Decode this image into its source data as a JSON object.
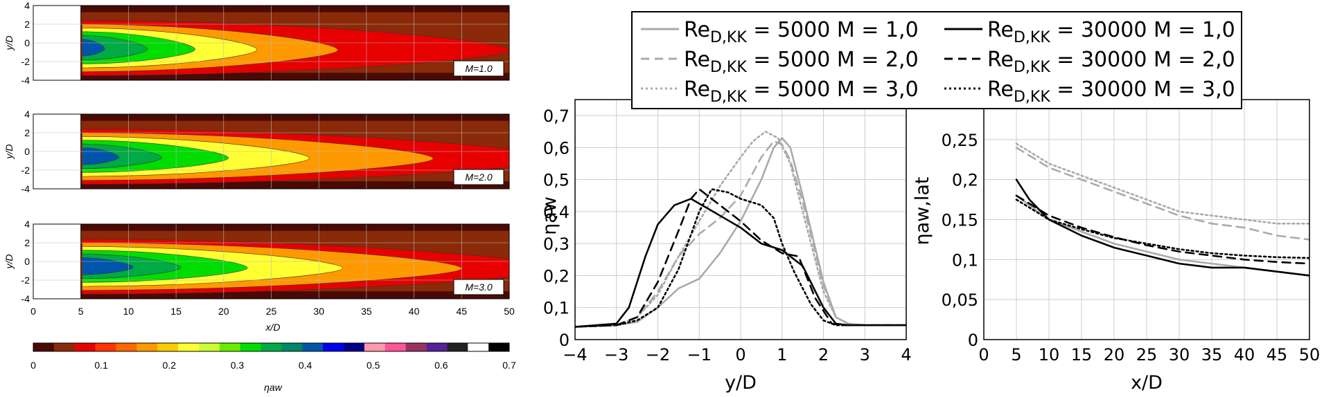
{
  "contour": {
    "x_label": "x/D",
    "y_label": "y/D",
    "x_ticks": [
      "0",
      "5",
      "10",
      "15",
      "20",
      "25",
      "30",
      "35",
      "40",
      "45",
      "50"
    ],
    "y_ticks": [
      "4",
      "2",
      "0",
      "-2",
      "-4"
    ],
    "panels": [
      {
        "tag": "M=1.0",
        "reach": [
          2.5,
          7,
          12,
          18.5,
          27,
          45
        ]
      },
      {
        "tag": "M=2.0",
        "reach": [
          4,
          8.5,
          15.5,
          24,
          37,
          50
        ]
      },
      {
        "tag": "M=3.0",
        "reach": [
          5.5,
          10.5,
          17.5,
          27.5,
          40,
          50
        ]
      }
    ],
    "colorbar": {
      "label": "ηaw",
      "ticks": [
        "0",
        "0.1",
        "0.2",
        "0.3",
        "0.4",
        "0.5",
        "0.6",
        "0.7"
      ],
      "colors": [
        "#4a0a04",
        "#8a2a08",
        "#e60000",
        "#ff3300",
        "#ff6600",
        "#ff9900",
        "#ffcc00",
        "#ffff33",
        "#ccff33",
        "#66ee00",
        "#00dd00",
        "#00aa44",
        "#008866",
        "#0055aa",
        "#0000ee",
        "#000088",
        "#ff99aa",
        "#ff5599",
        "#993366",
        "#552299",
        "#222222",
        "#ffffff",
        "#000000"
      ]
    }
  },
  "legend": [
    {
      "prefix": "Re",
      "sub": "D,KK",
      "text": " = 5000 M = 1,0",
      "color": "#aaaaaa",
      "dash": "solid"
    },
    {
      "prefix": "Re",
      "sub": "D,KK",
      "text": " = 30000 M = 1,0",
      "color": "#000000",
      "dash": "solid"
    },
    {
      "prefix": "Re",
      "sub": "D,KK",
      "text": " = 5000 M = 2,0",
      "color": "#aaaaaa",
      "dash": "dashed"
    },
    {
      "prefix": "Re",
      "sub": "D,KK",
      "text": " = 30000 M = 2,0",
      "color": "#000000",
      "dash": "dashed"
    },
    {
      "prefix": "Re",
      "sub": "D,KK",
      "text": " = 5000 M = 3,0",
      "color": "#aaaaaa",
      "dash": "dotted"
    },
    {
      "prefix": "Re",
      "sub": "D,KK",
      "text": " = 30000 M = 3,0",
      "color": "#000000",
      "dash": "dotted"
    }
  ],
  "chart_data": [
    {
      "type": "line",
      "xlabel": "y/D",
      "ylabel": "ηaw",
      "xlim": [
        -4,
        4
      ],
      "ylim": [
        0,
        0.75
      ],
      "x_ticks": [
        "−4",
        "−3",
        "−2",
        "−1",
        "0",
        "1",
        "2",
        "3",
        "4"
      ],
      "y_ticks": [
        "0",
        "0,1",
        "0,2",
        "0,3",
        "0,4",
        "0,5",
        "0,6",
        "0,7"
      ],
      "grid": true,
      "series": [
        {
          "name": "ReD,KK = 5000 M = 1,0",
          "color": "#aaaaaa",
          "dash": "solid",
          "x": [
            -4,
            -3,
            -2.5,
            -2,
            -1.5,
            -1,
            -0.5,
            0,
            0.5,
            0.8,
            1,
            1.2,
            1.5,
            2,
            2.3,
            2.6,
            3,
            4
          ],
          "y": [
            0.04,
            0.045,
            0.055,
            0.1,
            0.16,
            0.19,
            0.27,
            0.37,
            0.5,
            0.6,
            0.63,
            0.6,
            0.45,
            0.18,
            0.07,
            0.05,
            0.045,
            0.045
          ]
        },
        {
          "name": "ReD,KK = 5000 M = 2,0",
          "color": "#aaaaaa",
          "dash": "dashed",
          "x": [
            -4,
            -3,
            -2.5,
            -2,
            -1.5,
            -1,
            -0.5,
            0,
            0.5,
            0.8,
            1,
            1.2,
            1.5,
            2,
            2.3,
            2.6,
            3,
            4
          ],
          "y": [
            0.04,
            0.045,
            0.07,
            0.15,
            0.26,
            0.33,
            0.38,
            0.45,
            0.57,
            0.62,
            0.61,
            0.56,
            0.43,
            0.17,
            0.07,
            0.05,
            0.045,
            0.045
          ]
        },
        {
          "name": "ReD,KK = 5000 M = 3,0",
          "color": "#aaaaaa",
          "dash": "dotted",
          "x": [
            -4,
            -3,
            -2.5,
            -2,
            -1.5,
            -1,
            -0.5,
            0,
            0.3,
            0.6,
            0.9,
            1.2,
            1.5,
            2,
            2.3,
            2.6,
            3,
            4
          ],
          "y": [
            0.04,
            0.045,
            0.07,
            0.14,
            0.26,
            0.37,
            0.48,
            0.57,
            0.62,
            0.65,
            0.63,
            0.55,
            0.4,
            0.15,
            0.07,
            0.05,
            0.045,
            0.045
          ]
        },
        {
          "name": "ReD,KK = 30000 M = 1,0",
          "color": "#000000",
          "dash": "solid",
          "x": [
            -4,
            -3,
            -2.7,
            -2.3,
            -2,
            -1.6,
            -1.2,
            -0.8,
            -0.4,
            0,
            0.5,
            1,
            1.5,
            2,
            2.3,
            2.6,
            3,
            4
          ],
          "y": [
            0.04,
            0.05,
            0.1,
            0.26,
            0.36,
            0.42,
            0.44,
            0.41,
            0.38,
            0.35,
            0.3,
            0.28,
            0.23,
            0.1,
            0.05,
            0.045,
            0.045,
            0.045
          ]
        },
        {
          "name": "ReD,KK = 30000 M = 2,0",
          "color": "#000000",
          "dash": "dashed",
          "x": [
            -4,
            -3,
            -2.5,
            -2,
            -1.5,
            -1.2,
            -1,
            -0.7,
            -0.3,
            0,
            0.5,
            1,
            1.4,
            1.8,
            2.2,
            2.5,
            3,
            4
          ],
          "y": [
            0.04,
            0.045,
            0.07,
            0.18,
            0.34,
            0.44,
            0.47,
            0.44,
            0.4,
            0.37,
            0.31,
            0.27,
            0.26,
            0.13,
            0.05,
            0.045,
            0.045,
            0.045
          ]
        },
        {
          "name": "ReD,KK = 30000 M = 3,0",
          "color": "#000000",
          "dash": "dotted",
          "x": [
            -4,
            -3,
            -2.5,
            -2,
            -1.5,
            -1,
            -0.7,
            -0.3,
            0,
            0.5,
            0.8,
            1,
            1.3,
            1.7,
            2,
            2.3,
            3,
            4
          ],
          "y": [
            0.04,
            0.045,
            0.06,
            0.1,
            0.22,
            0.4,
            0.47,
            0.46,
            0.44,
            0.42,
            0.38,
            0.3,
            0.21,
            0.11,
            0.06,
            0.045,
            0.045,
            0.045
          ]
        }
      ]
    },
    {
      "type": "line",
      "xlabel": "x/D",
      "ylabel": "ηaw,lat",
      "xlim": [
        0,
        50
      ],
      "ylim": [
        0,
        0.3
      ],
      "x_ticks": [
        "0",
        "5",
        "10",
        "15",
        "20",
        "25",
        "30",
        "35",
        "40",
        "45",
        "50"
      ],
      "y_ticks": [
        "0",
        "0,05",
        "0,1",
        "0,15",
        "0,2",
        "0,25"
      ],
      "grid": true,
      "series": [
        {
          "name": "ReD,KK = 5000 M = 1,0",
          "color": "#aaaaaa",
          "dash": "solid",
          "x": [
            5,
            10,
            15,
            20,
            25,
            30,
            35,
            40,
            45,
            50
          ],
          "y": [
            0.18,
            0.15,
            0.135,
            0.12,
            0.11,
            0.1,
            0.095,
            0.09,
            0.085,
            0.08
          ]
        },
        {
          "name": "ReD,KK = 5000 M = 2,0",
          "color": "#aaaaaa",
          "dash": "dashed",
          "x": [
            5,
            10,
            15,
            20,
            25,
            30,
            35,
            40,
            45,
            50
          ],
          "y": [
            0.24,
            0.215,
            0.2,
            0.185,
            0.17,
            0.155,
            0.145,
            0.14,
            0.13,
            0.125
          ]
        },
        {
          "name": "ReD,KK = 5000 M = 3,0",
          "color": "#aaaaaa",
          "dash": "dotted",
          "x": [
            5,
            10,
            15,
            20,
            25,
            30,
            35,
            40,
            45,
            50
          ],
          "y": [
            0.245,
            0.22,
            0.205,
            0.19,
            0.175,
            0.16,
            0.155,
            0.15,
            0.145,
            0.145
          ]
        },
        {
          "name": "ReD,KK = 30000 M = 1,0",
          "color": "#000000",
          "dash": "solid",
          "x": [
            5,
            7,
            10,
            15,
            20,
            25,
            30,
            35,
            40,
            45,
            50
          ],
          "y": [
            0.2,
            0.175,
            0.15,
            0.13,
            0.115,
            0.105,
            0.095,
            0.09,
            0.09,
            0.085,
            0.08
          ]
        },
        {
          "name": "ReD,KK = 30000 M = 2,0",
          "color": "#000000",
          "dash": "dashed",
          "x": [
            5,
            10,
            15,
            20,
            25,
            30,
            35,
            40,
            45,
            50
          ],
          "y": [
            0.18,
            0.155,
            0.14,
            0.128,
            0.118,
            0.11,
            0.105,
            0.1,
            0.097,
            0.095
          ]
        },
        {
          "name": "ReD,KK = 30000 M = 3,0",
          "color": "#000000",
          "dash": "dotted",
          "x": [
            5,
            10,
            15,
            20,
            25,
            30,
            35,
            40,
            45,
            50
          ],
          "y": [
            0.175,
            0.15,
            0.138,
            0.127,
            0.12,
            0.113,
            0.108,
            0.105,
            0.103,
            0.102
          ]
        }
      ]
    }
  ]
}
